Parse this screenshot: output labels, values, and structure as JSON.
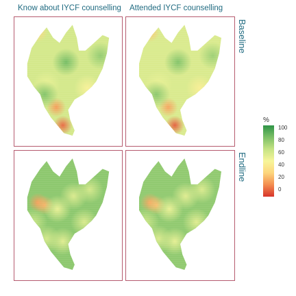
{
  "columns": [
    {
      "label": "Know about IYCF counselling"
    },
    {
      "label": "Attended IYCF counselling"
    }
  ],
  "rows": [
    {
      "label": "Baseline"
    },
    {
      "label": "Endline"
    }
  ],
  "legend": {
    "title": "%",
    "ticks": [
      "100",
      "80",
      "60",
      "40",
      "20",
      "0"
    ],
    "colors": [
      "#d7342b",
      "#f38d4f",
      "#fdd67d",
      "#f7f59a",
      "#c5e383",
      "#7cc066",
      "#2f9447"
    ]
  },
  "map_data": {
    "variable": "%",
    "range": [
      0,
      100
    ],
    "panels": [
      {
        "column": "Know about IYCF counselling",
        "row": "Baseline",
        "base_value": 62,
        "hotspots": [
          {
            "lon": 0.22,
            "lat": 0.12,
            "value": 35
          },
          {
            "lon": 0.48,
            "lat": 0.35,
            "value": 85
          },
          {
            "lon": 0.3,
            "lat": 0.52,
            "value": 55
          },
          {
            "lon": 0.68,
            "lat": 0.55,
            "value": 48
          },
          {
            "lon": 0.39,
            "lat": 0.7,
            "value": 20
          },
          {
            "lon": 0.45,
            "lat": 0.84,
            "value": 10
          },
          {
            "lon": 0.28,
            "lat": 0.6,
            "value": 82
          },
          {
            "lon": 0.8,
            "lat": 0.3,
            "value": 78
          }
        ]
      },
      {
        "column": "Attended IYCF counselling",
        "row": "Baseline",
        "base_value": 60,
        "hotspots": [
          {
            "lon": 0.22,
            "lat": 0.12,
            "value": 30
          },
          {
            "lon": 0.48,
            "lat": 0.35,
            "value": 82
          },
          {
            "lon": 0.3,
            "lat": 0.52,
            "value": 55
          },
          {
            "lon": 0.68,
            "lat": 0.55,
            "value": 46
          },
          {
            "lon": 0.39,
            "lat": 0.7,
            "value": 22
          },
          {
            "lon": 0.45,
            "lat": 0.84,
            "value": 8
          },
          {
            "lon": 0.28,
            "lat": 0.6,
            "value": 80
          },
          {
            "lon": 0.8,
            "lat": 0.3,
            "value": 76
          }
        ]
      },
      {
        "column": "Know about IYCF counselling",
        "row": "Endline",
        "base_value": 80,
        "hotspots": [
          {
            "lon": 0.22,
            "lat": 0.4,
            "value": 20
          },
          {
            "lon": 0.28,
            "lat": 0.42,
            "value": 25
          },
          {
            "lon": 0.4,
            "lat": 0.45,
            "value": 55
          },
          {
            "lon": 0.55,
            "lat": 0.35,
            "value": 60
          },
          {
            "lon": 0.7,
            "lat": 0.3,
            "value": 62
          },
          {
            "lon": 0.45,
            "lat": 0.7,
            "value": 58
          },
          {
            "lon": 0.3,
            "lat": 0.68,
            "value": 62
          },
          {
            "lon": 0.65,
            "lat": 0.55,
            "value": 60
          },
          {
            "lon": 0.18,
            "lat": 0.55,
            "value": 66
          }
        ]
      },
      {
        "column": "Attended IYCF counselling",
        "row": "Endline",
        "base_value": 79,
        "hotspots": [
          {
            "lon": 0.22,
            "lat": 0.4,
            "value": 22
          },
          {
            "lon": 0.28,
            "lat": 0.42,
            "value": 28
          },
          {
            "lon": 0.4,
            "lat": 0.45,
            "value": 55
          },
          {
            "lon": 0.55,
            "lat": 0.35,
            "value": 58
          },
          {
            "lon": 0.7,
            "lat": 0.3,
            "value": 60
          },
          {
            "lon": 0.45,
            "lat": 0.7,
            "value": 56
          },
          {
            "lon": 0.3,
            "lat": 0.68,
            "value": 60
          },
          {
            "lon": 0.65,
            "lat": 0.55,
            "value": 58
          },
          {
            "lon": 0.18,
            "lat": 0.55,
            "value": 65
          }
        ]
      }
    ]
  }
}
